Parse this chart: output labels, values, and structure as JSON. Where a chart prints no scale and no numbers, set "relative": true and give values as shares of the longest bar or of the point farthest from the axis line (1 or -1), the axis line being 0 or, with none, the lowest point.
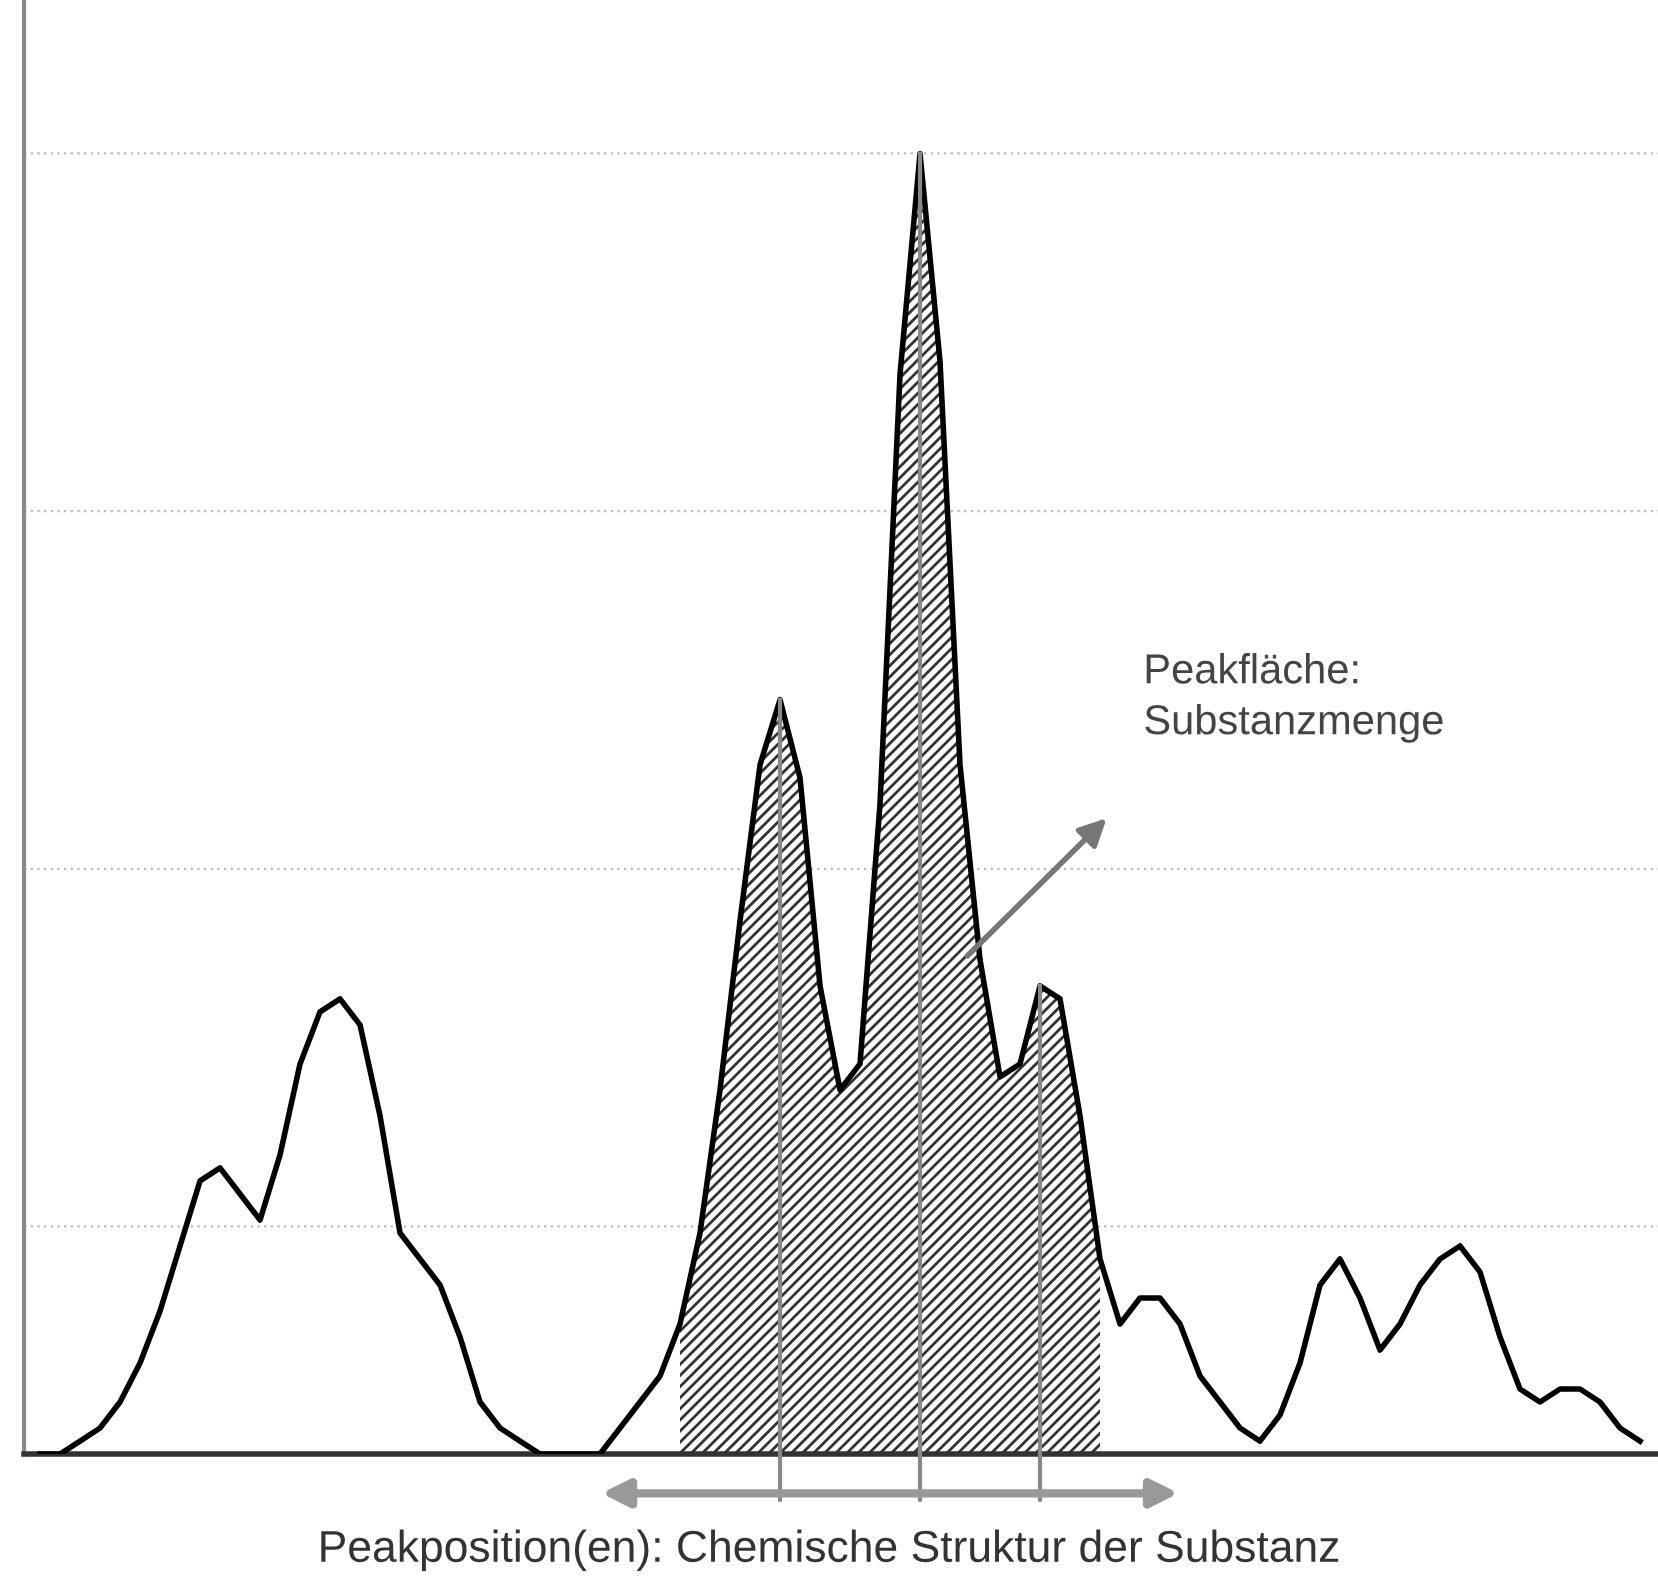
{
  "chart_data": {
    "type": "line",
    "relative": true,
    "grid": "y",
    "categories": [
      null,
      null,
      null,
      null,
      null,
      null,
      null,
      null,
      null,
      null,
      null,
      null,
      null,
      null,
      null,
      null,
      null,
      null,
      null,
      null,
      null,
      null,
      null,
      null,
      null,
      null,
      null,
      null,
      null,
      null,
      null,
      null,
      null,
      null,
      null,
      null,
      null,
      null,
      null,
      null,
      null,
      null,
      null,
      null,
      null,
      null,
      null,
      null,
      null,
      null,
      null,
      null,
      null,
      null,
      null,
      null,
      null,
      null,
      null,
      null,
      null,
      null,
      null,
      null,
      null,
      null,
      null,
      null,
      null,
      null,
      null,
      null,
      null,
      null,
      null,
      null,
      null,
      null,
      null,
      null,
      null
    ],
    "series": [
      {
        "color": "#000000",
        "values": [
          0.0,
          0.0,
          0.01,
          0.02,
          0.04,
          0.07,
          0.11,
          0.16,
          0.21,
          0.22,
          0.2,
          0.18,
          0.23,
          0.3,
          0.34,
          0.35,
          0.33,
          0.26,
          0.17,
          0.15,
          0.13,
          0.09,
          0.04,
          0.02,
          0.01,
          0.0,
          0.0,
          0.0,
          0.0,
          0.02,
          0.04,
          0.06,
          0.1,
          0.17,
          0.28,
          0.41,
          0.53,
          0.58,
          0.52,
          0.36,
          0.28,
          0.3,
          0.5,
          0.83,
          1.0,
          0.84,
          0.53,
          0.38,
          0.29,
          0.3,
          0.36,
          0.35,
          0.26,
          0.15,
          0.1,
          0.12,
          0.12,
          0.1,
          0.06,
          0.04,
          0.02,
          0.01,
          0.03,
          0.07,
          0.13,
          0.15,
          0.12,
          0.08,
          0.1,
          0.13,
          0.15,
          0.16,
          0.14,
          0.09,
          0.05,
          0.04,
          0.05,
          0.05,
          0.04,
          0.02,
          0.01
        ]
      },
      {
        "type": "area",
        "color": "#333333",
        "values": [
          null,
          null,
          null,
          null,
          null,
          null,
          null,
          null,
          null,
          null,
          null,
          null,
          null,
          null,
          null,
          null,
          null,
          null,
          null,
          null,
          null,
          null,
          null,
          null,
          null,
          null,
          null,
          null,
          null,
          null,
          null,
          null,
          0.1,
          0.17,
          0.28,
          0.41,
          0.53,
          0.58,
          0.52,
          0.36,
          0.28,
          0.3,
          0.5,
          0.83,
          1.0,
          0.84,
          0.53,
          0.38,
          0.29,
          0.3,
          0.36,
          0.35,
          0.26,
          0.15,
          null,
          null,
          null,
          null,
          null,
          null,
          null,
          null,
          null,
          null,
          null,
          null,
          null,
          null,
          null,
          null,
          null,
          null,
          null,
          null,
          null,
          null,
          null,
          null,
          null,
          null,
          null
        ]
      }
    ],
    "annotations": [
      "Peakfläche:\nSubstanzmenge",
      "Peakposition(en): Chemische Struktur der Substanz"
    ]
  }
}
